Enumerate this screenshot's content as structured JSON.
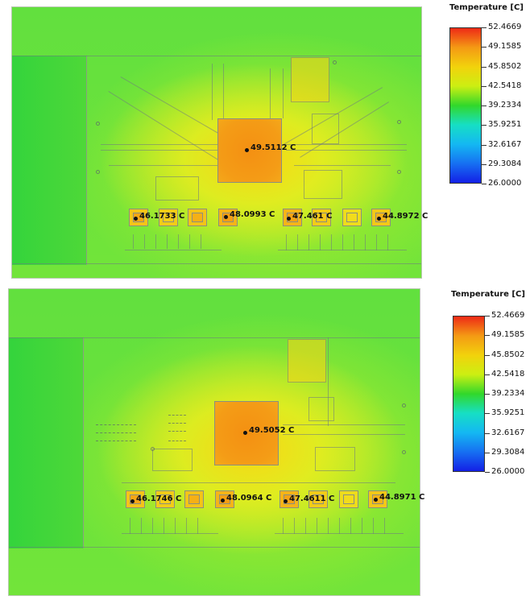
{
  "legend": {
    "title": "Temperature [C]",
    "values": [
      "52.4669",
      "49.1585",
      "45.8502",
      "42.5418",
      "39.2334",
      "35.9251",
      "32.6167",
      "29.3084",
      "26.0000"
    ],
    "colors": [
      "#ee2a16",
      "#f49a14",
      "#f2d20c",
      "#ccef12",
      "#32d82a",
      "#16dfc4",
      "#14b8f2",
      "#1670f2",
      "#1420e6"
    ]
  },
  "colors": {
    "board_green": "#6fe43a",
    "board_yellow": "#d8f026",
    "chip_orange": "#f49a14",
    "pad_orange": "#f5b41a",
    "band_green": "#3cd640"
  },
  "panels": [
    {
      "name": "top",
      "chip_reading": "49.5112 C",
      "pad_readings": [
        "46.1733 C",
        "48.0993 C",
        "47.461 C",
        "44.8972 C"
      ]
    },
    {
      "name": "bottom",
      "chip_reading": "49.5052 C",
      "pad_readings": [
        "46.1746 C",
        "48.0964 C",
        "47.4611 C",
        "44.8971 C"
      ]
    }
  ]
}
